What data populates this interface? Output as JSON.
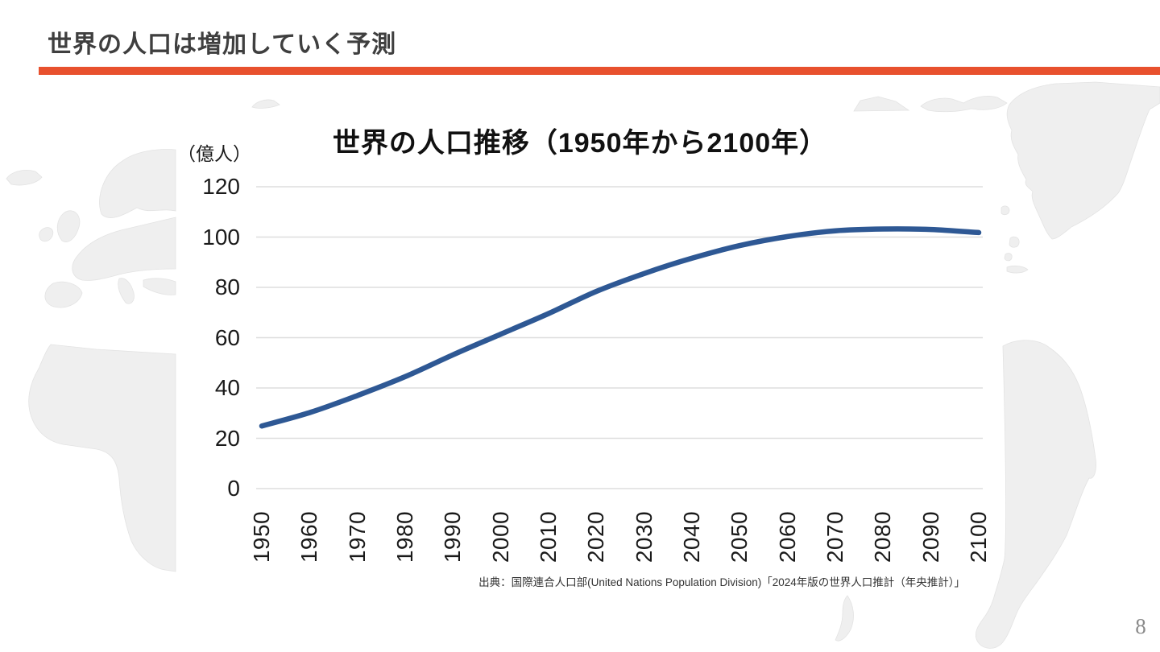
{
  "slide": {
    "header": {
      "title": "世界の人口は増加していく予測"
    },
    "source": "出典：国際連合人口部(United Nations Population Division)「2024年版の世界人口推計（年央推計）」",
    "page_number": "8"
  },
  "colors": {
    "accent_orange": "#E8512E",
    "line_blue": "#2E5894",
    "grid_gray": "#DEDEDE",
    "map_gray": "#EFEFEF",
    "title_gray": "#3F3F3F",
    "page_gray": "#8A8A8A"
  },
  "chart_data": {
    "type": "line",
    "title": "世界の人口推移（1950年から2100年）",
    "unit_label": "（億人）",
    "xlabel": "",
    "ylabel": "億人",
    "x": [
      1950,
      1960,
      1970,
      1980,
      1990,
      2000,
      2010,
      2020,
      2030,
      2040,
      2050,
      2060,
      2070,
      2080,
      2090,
      2100
    ],
    "values": [
      24.9,
      30.2,
      37.0,
      44.5,
      53.2,
      61.4,
      69.6,
      78.4,
      85.5,
      91.6,
      96.6,
      100.2,
      102.5,
      103.2,
      103.0,
      101.8
    ],
    "ylim": [
      0,
      120
    ],
    "y_ticks": [
      0,
      20,
      40,
      60,
      80,
      100,
      120
    ],
    "grid": true,
    "legend": "none"
  }
}
